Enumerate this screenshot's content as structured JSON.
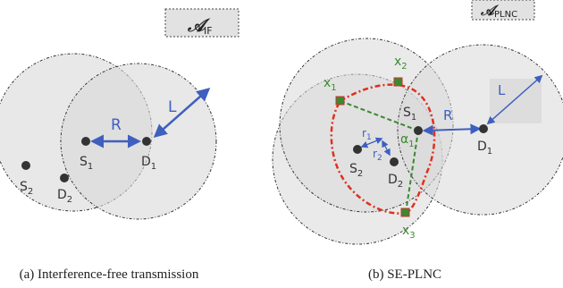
{
  "panel_a": {
    "badge": "𝒜",
    "badge_sub": "IF",
    "R": "R",
    "L": "L",
    "S1": "S",
    "S1_sub": "1",
    "D1": "D",
    "D1_sub": "1",
    "S2": "S",
    "S2_sub": "2",
    "D2": "D",
    "D2_sub": "2",
    "caption": "(a) Interference-free transmission"
  },
  "panel_b": {
    "badge": "𝒜",
    "badge_sub": "PLNC",
    "x1": "x",
    "x1_sub": "1",
    "x2": "x",
    "x2_sub": "2",
    "x3": "x",
    "x3_sub": "3",
    "S1": "S",
    "S1_sub": "1",
    "D1": "D",
    "D1_sub": "1",
    "S2": "S",
    "S2_sub": "2",
    "D2": "D",
    "D2_sub": "2",
    "R": "R",
    "L": "L",
    "r1": "r",
    "r1_sub": "1",
    "r2": "r",
    "r2_sub": "2",
    "alpha": "α",
    "alpha_sub": "1",
    "caption": "(b) SE-PLNC"
  },
  "colors": {
    "circle_fill": "#d9d9d9",
    "circle_stroke": "#333333",
    "arrow_blue": "#3f5fbf",
    "green": "#3a8a2e",
    "red": "#e0301e",
    "node": "#333333"
  }
}
